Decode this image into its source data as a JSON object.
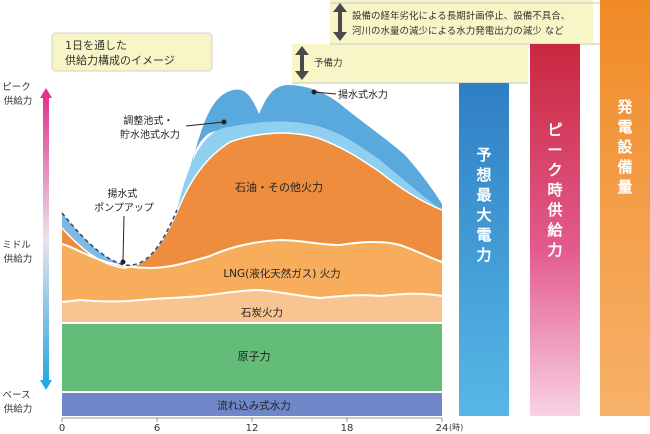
{
  "chart_data": {
    "type": "area",
    "title": "1日を通した\n供給力構成のイメージ",
    "x": [
      0,
      6,
      12,
      18,
      24
    ],
    "x_tick_labels": [
      "0",
      "6",
      "12",
      "18",
      "24"
    ],
    "x_unit": "(時)",
    "xlim": [
      0,
      24
    ],
    "y_levels": [
      "ピーク\n供給力",
      "ミドル\n供給力",
      "ベース\n供給力"
    ],
    "layers": [
      {
        "name": "流れ込み式水力",
        "color": "#6f86c8"
      },
      {
        "name": "原子力",
        "color": "#63bd78"
      },
      {
        "name": "石炭火力",
        "color": "#f8c592"
      },
      {
        "name": "LNG(液化天然ガス) 火力",
        "color": "#f7ad5b"
      },
      {
        "name": "石油・その他火力",
        "color": "#ef8d3f"
      },
      {
        "name": "調整池式・\n貯水池式水力",
        "color": "#8fd0f0"
      },
      {
        "name": "揚水式水力",
        "color": "#5aa9dc"
      },
      {
        "name": "揚水式\nポンプアップ",
        "color": "#7fb8e3"
      }
    ],
    "bars": [
      {
        "name": "予想最大電力",
        "color_top": "#2f7fc4",
        "color_bottom": "#56b8e6"
      },
      {
        "name": "ピーク時供給力",
        "color_top": "#c8283e",
        "color_bottom": "#f5c8dc"
      },
      {
        "name": "発電設備量",
        "color_top": "#f08a26",
        "color_bottom": "#f7b26a"
      }
    ],
    "annotations": {
      "reserve": "予備力",
      "outage": "設備の経年劣化による長期計画停止、設備不具合、\n河川の水量の減少による水力発電出力の減少 など"
    }
  }
}
